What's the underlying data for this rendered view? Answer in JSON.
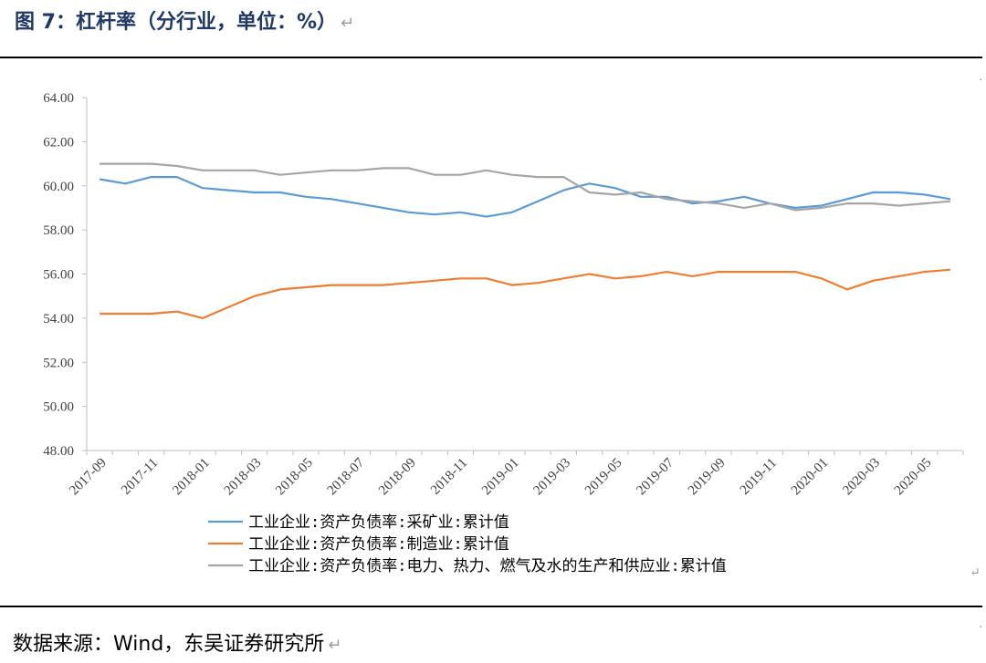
{
  "title": "图 7：杠杆率（分行业，单位：%）",
  "title_return_mark": "↵",
  "source": "数据来源：Wind，东吴证券研究所",
  "source_return_mark": "↵",
  "legend_return_mark": "↵",
  "chart_data": {
    "type": "line",
    "ylim": [
      48,
      64
    ],
    "yticks": [
      "48.00",
      "50.00",
      "52.00",
      "54.00",
      "56.00",
      "58.00",
      "60.00",
      "62.00",
      "64.00"
    ],
    "xtick_labels": [
      "2017-09",
      "2017-11",
      "2018-01",
      "2018-03",
      "2018-05",
      "2018-07",
      "2018-09",
      "2018-11",
      "2019-01",
      "2019-03",
      "2019-05",
      "2019-07",
      "2019-09",
      "2019-11",
      "2020-01",
      "2020-03",
      "2020-05"
    ],
    "x": [
      "2017-09",
      "2017-10",
      "2017-11",
      "2017-12",
      "2018-01",
      "2018-02",
      "2018-03",
      "2018-04",
      "2018-05",
      "2018-06",
      "2018-07",
      "2018-08",
      "2018-09",
      "2018-10",
      "2018-11",
      "2018-12",
      "2019-01",
      "2019-02",
      "2019-03",
      "2019-04",
      "2019-05",
      "2019-06",
      "2019-07",
      "2019-08",
      "2019-09",
      "2019-10",
      "2019-11",
      "2019-12",
      "2020-01",
      "2020-02",
      "2020-03",
      "2020-04",
      "2020-05",
      "2020-06"
    ],
    "grid": false,
    "legend_position": "bottom",
    "series": [
      {
        "name": "工业企业:资产负债率:采矿业:累计值",
        "color": "#5b9bd5",
        "values": [
          60.3,
          60.1,
          60.4,
          60.4,
          59.9,
          59.8,
          59.7,
          59.7,
          59.5,
          59.4,
          59.2,
          59.0,
          58.8,
          58.7,
          58.8,
          58.6,
          58.8,
          59.3,
          59.8,
          60.1,
          59.9,
          59.5,
          59.5,
          59.2,
          59.3,
          59.5,
          59.2,
          59.0,
          59.1,
          59.4,
          59.7,
          59.7,
          59.6,
          59.4
        ]
      },
      {
        "name": "工业企业:资产负债率:制造业:累计值",
        "color": "#ed7d31",
        "values": [
          54.2,
          54.2,
          54.2,
          54.3,
          54.0,
          54.5,
          55.0,
          55.3,
          55.4,
          55.5,
          55.5,
          55.5,
          55.6,
          55.7,
          55.8,
          55.8,
          55.5,
          55.6,
          55.8,
          56.0,
          55.8,
          55.9,
          56.1,
          55.9,
          56.1,
          56.1,
          56.1,
          56.1,
          55.8,
          55.3,
          55.7,
          55.9,
          56.1,
          56.2
        ]
      },
      {
        "name": "工业企业:资产负债率:电力、热力、燃气及水的生产和供应业:累计值",
        "color": "#a5a5a5",
        "values": [
          61.0,
          61.0,
          61.0,
          60.9,
          60.7,
          60.7,
          60.7,
          60.5,
          60.6,
          60.7,
          60.7,
          60.8,
          60.8,
          60.5,
          60.5,
          60.7,
          60.5,
          60.4,
          60.4,
          59.7,
          59.6,
          59.7,
          59.4,
          59.3,
          59.2,
          59.0,
          59.2,
          58.9,
          59.0,
          59.2,
          59.2,
          59.1,
          59.2,
          59.3
        ]
      }
    ]
  }
}
